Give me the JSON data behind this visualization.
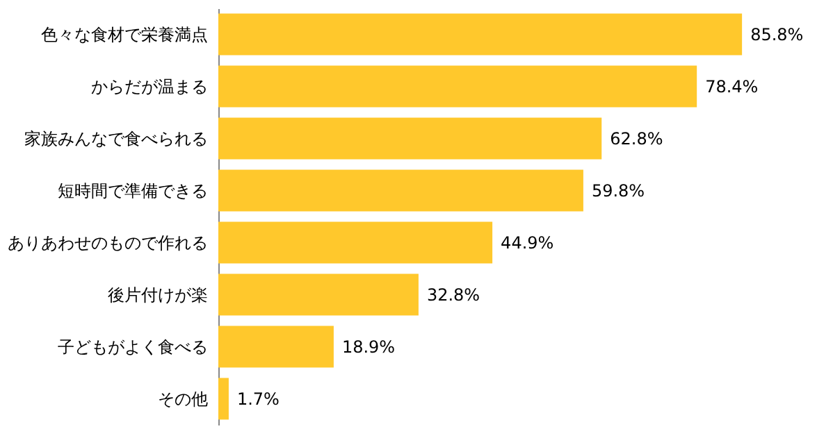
{
  "chart_data": {
    "type": "bar",
    "orientation": "horizontal",
    "categories": [
      "色々な食材で栄養満点",
      "からだが温まる",
      "家族みんなで食べられる",
      "短時間で準備できる",
      "ありあわせのもので作れる",
      "後片付けが楽",
      "子どもがよく食べる",
      "その他"
    ],
    "values": [
      85.8,
      78.4,
      62.8,
      59.8,
      44.9,
      32.8,
      18.9,
      1.7
    ],
    "color": "#ffc82c",
    "value_labels": [
      "85.8%",
      "78.4%",
      "62.8%",
      "59.8%",
      "44.9%",
      "32.8%",
      "18.9%",
      "1.7%"
    ],
    "tick_labels": "y",
    "grid": false
  }
}
